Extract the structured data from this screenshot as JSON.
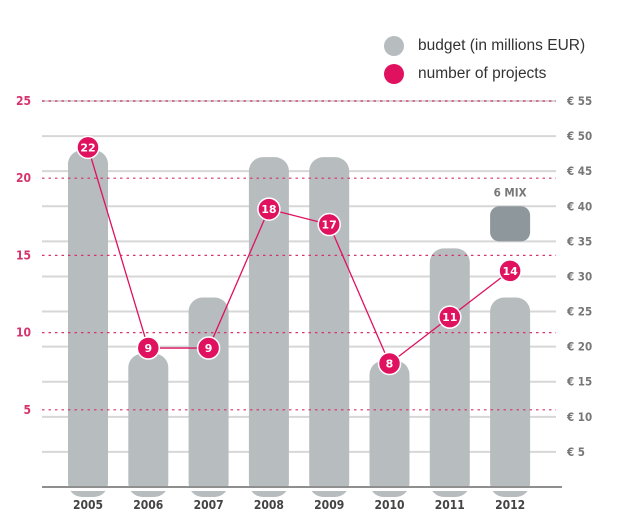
{
  "legend": {
    "items": [
      {
        "label": "budget (in millions EUR)",
        "color": "#b7bcbf"
      },
      {
        "label": "number of projects",
        "color": "#e0115f"
      }
    ]
  },
  "chart_data": {
    "type": "bar+line",
    "categories": [
      "2005",
      "2006",
      "2007",
      "2008",
      "2009",
      "2010",
      "2011",
      "2012"
    ],
    "series": [
      {
        "name": "budget (in millions EUR)",
        "type": "bar",
        "axis": "right",
        "values": [
          48,
          19,
          27,
          47,
          47,
          18,
          34,
          27
        ],
        "color": "#b7bcbf"
      },
      {
        "name": "number of projects",
        "type": "line",
        "axis": "left",
        "values": [
          22,
          9,
          9,
          18,
          17,
          8,
          11,
          14
        ],
        "color": "#e0115f"
      }
    ],
    "extra_bar": {
      "category": "2012",
      "label": "6 MIX",
      "from": 35,
      "to": 40,
      "color": "#8e979b"
    },
    "left_axis": {
      "ticks": [
        "5",
        "10",
        "15",
        "20",
        "25"
      ],
      "values": [
        5,
        10,
        15,
        20,
        25
      ],
      "ylim": [
        0,
        25
      ]
    },
    "right_axis": {
      "ticks": [
        "€ 5",
        "€ 10",
        "€ 15",
        "€ 20",
        "€ 25",
        "€ 30",
        "€ 35",
        "€ 40",
        "€ 45",
        "€ 50",
        "€ 55"
      ],
      "values": [
        5,
        10,
        15,
        20,
        25,
        30,
        35,
        40,
        45,
        50,
        55
      ],
      "ylim": [
        0,
        55
      ]
    },
    "grid": true,
    "legend_position": "top-right"
  }
}
